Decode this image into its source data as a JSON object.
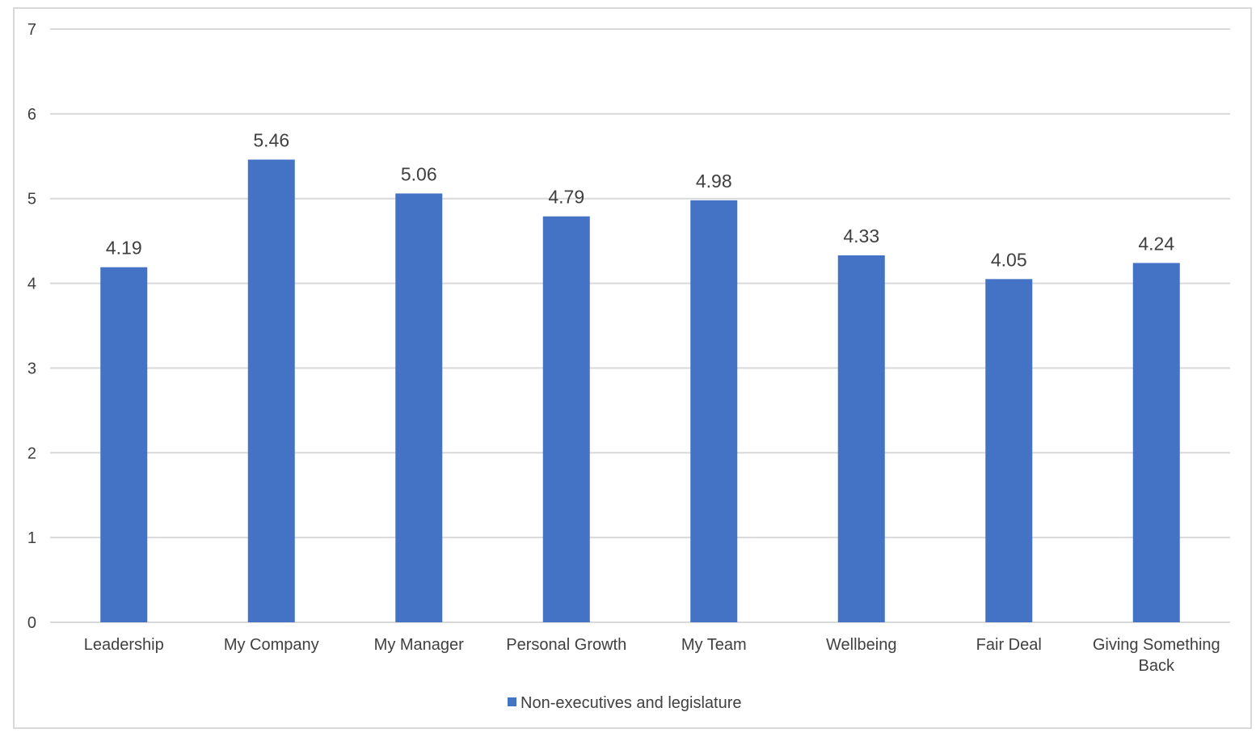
{
  "chart_data": {
    "type": "bar",
    "categories": [
      [
        "Leadership"
      ],
      [
        "My Company"
      ],
      [
        "My Manager"
      ],
      [
        "Personal Growth"
      ],
      [
        "My Team"
      ],
      [
        "Wellbeing"
      ],
      [
        "Fair Deal"
      ],
      [
        "Giving Something",
        "Back"
      ]
    ],
    "series": [
      {
        "name": "Non-executives and legislature",
        "values": [
          4.19,
          5.46,
          5.06,
          4.79,
          4.98,
          4.33,
          4.05,
          4.24
        ],
        "color": "#4472c4"
      }
    ],
    "ylim": [
      0,
      7
    ],
    "yticks": [
      0,
      1,
      2,
      3,
      4,
      5,
      6,
      7
    ],
    "grid": true,
    "legend_position": "bottom",
    "data_labels": [
      "4.19",
      "5.46",
      "5.06",
      "4.79",
      "4.98",
      "4.33",
      "4.05",
      "4.24"
    ],
    "colors": {
      "grid": "#d9d9d9",
      "text": "#404040",
      "frame": "#d9d9d9"
    }
  }
}
